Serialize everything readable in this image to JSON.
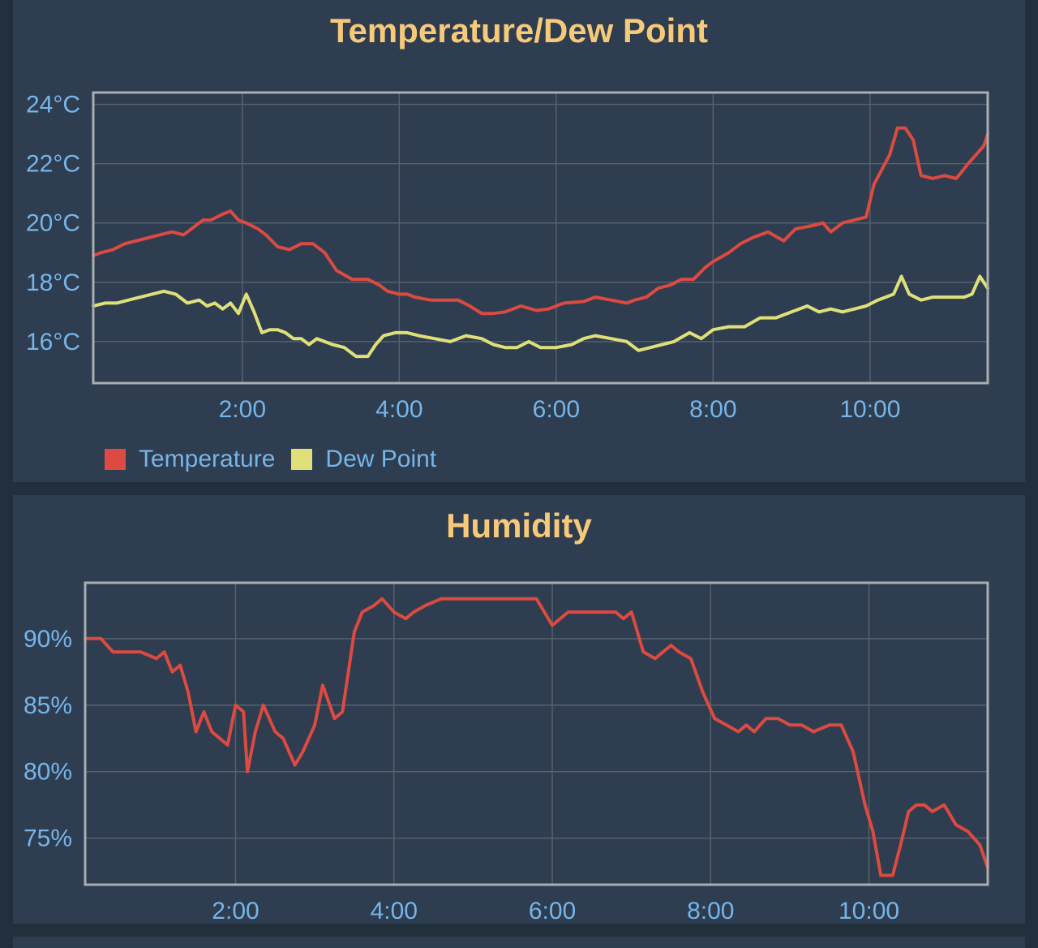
{
  "colors": {
    "background": "#22303d",
    "panel": "#2e3d4f",
    "title": "#f7c97a",
    "tick_text": "#76b5ea",
    "grid": "#56616d",
    "frame": "#a8adb2",
    "temperature": "#dc4a41",
    "dew_point": "#dfe07a",
    "humidity": "#dc4a41"
  },
  "chart_data": [
    {
      "type": "line",
      "title": "Temperature/Dew Point",
      "xlabel": "",
      "ylabel": "",
      "x_range_hours": [
        0.1,
        11.5
      ],
      "ylim": [
        14.6,
        24.4
      ],
      "yticks": [
        16,
        18,
        20,
        22,
        24
      ],
      "ytick_labels": [
        "16°C",
        "18°C",
        "20°C",
        "22°C",
        "24°C"
      ],
      "xticks": [
        2,
        4,
        6,
        8,
        10
      ],
      "xtick_labels": [
        "2:00",
        "4:00",
        "6:00",
        "8:00",
        "10:00"
      ],
      "grid": true,
      "legend": "bottom-left",
      "series": [
        {
          "name": "Temperature",
          "color": "#dc4a41",
          "x": [
            0.1,
            0.2,
            0.35,
            0.5,
            0.65,
            0.8,
            0.95,
            1.1,
            1.25,
            1.4,
            1.5,
            1.6,
            1.75,
            1.85,
            1.95,
            2.05,
            2.2,
            2.3,
            2.45,
            2.6,
            2.75,
            2.9,
            3.05,
            3.2,
            3.4,
            3.6,
            3.75,
            3.85,
            4.0,
            4.1,
            4.2,
            4.4,
            4.6,
            4.75,
            4.9,
            5.05,
            5.2,
            5.35,
            5.55,
            5.75,
            5.9,
            6.1,
            6.35,
            6.5,
            6.7,
            6.9,
            7.0,
            7.15,
            7.3,
            7.45,
            7.6,
            7.75,
            7.9,
            8.0,
            8.2,
            8.35,
            8.5,
            8.7,
            8.9,
            9.05,
            9.25,
            9.4,
            9.5,
            9.65,
            9.8,
            9.95,
            10.05,
            10.15,
            10.25,
            10.35,
            10.45,
            10.55,
            10.65,
            10.8,
            10.95,
            11.1,
            11.25,
            11.35,
            11.45,
            11.5
          ],
          "values": [
            18.9,
            19.0,
            19.1,
            19.3,
            19.4,
            19.5,
            19.6,
            19.7,
            19.6,
            19.9,
            20.1,
            20.1,
            20.3,
            20.4,
            20.1,
            20.0,
            19.8,
            19.6,
            19.2,
            19.1,
            19.3,
            19.3,
            19.0,
            18.4,
            18.1,
            18.1,
            17.9,
            17.7,
            17.6,
            17.6,
            17.5,
            17.4,
            17.4,
            17.4,
            17.2,
            16.95,
            16.95,
            17.0,
            17.2,
            17.05,
            17.1,
            17.3,
            17.35,
            17.5,
            17.4,
            17.3,
            17.4,
            17.5,
            17.8,
            17.9,
            18.1,
            18.1,
            18.5,
            18.7,
            19.0,
            19.3,
            19.5,
            19.7,
            19.4,
            19.8,
            19.9,
            20.0,
            19.7,
            20.0,
            20.1,
            20.2,
            21.3,
            21.8,
            22.3,
            23.2,
            23.2,
            22.8,
            21.6,
            21.5,
            21.6,
            21.5,
            22.0,
            22.3,
            22.6,
            23.0
          ]
        },
        {
          "name": "Dew Point",
          "color": "#dfe07a",
          "x": [
            0.1,
            0.25,
            0.4,
            0.55,
            0.7,
            0.85,
            1.0,
            1.15,
            1.3,
            1.45,
            1.55,
            1.65,
            1.75,
            1.85,
            1.95,
            2.05,
            2.15,
            2.25,
            2.35,
            2.45,
            2.55,
            2.65,
            2.75,
            2.85,
            2.95,
            3.05,
            3.15,
            3.3,
            3.45,
            3.6,
            3.7,
            3.8,
            3.95,
            4.1,
            4.25,
            4.45,
            4.65,
            4.85,
            5.05,
            5.2,
            5.35,
            5.5,
            5.65,
            5.8,
            6.0,
            6.2,
            6.35,
            6.5,
            6.7,
            6.9,
            7.05,
            7.2,
            7.35,
            7.5,
            7.7,
            7.85,
            8.0,
            8.2,
            8.4,
            8.6,
            8.8,
            9.0,
            9.2,
            9.35,
            9.5,
            9.65,
            9.8,
            9.95,
            10.1,
            10.2,
            10.3,
            10.4,
            10.5,
            10.65,
            10.8,
            11.0,
            11.2,
            11.3,
            11.4,
            11.5
          ],
          "values": [
            17.2,
            17.3,
            17.3,
            17.4,
            17.5,
            17.6,
            17.7,
            17.6,
            17.3,
            17.4,
            17.2,
            17.3,
            17.1,
            17.3,
            16.95,
            17.6,
            17.0,
            16.3,
            16.4,
            16.4,
            16.3,
            16.1,
            16.1,
            15.9,
            16.1,
            16.0,
            15.9,
            15.8,
            15.5,
            15.5,
            15.9,
            16.2,
            16.3,
            16.3,
            16.2,
            16.1,
            16.0,
            16.2,
            16.1,
            15.9,
            15.8,
            15.8,
            16.0,
            15.8,
            15.8,
            15.9,
            16.1,
            16.2,
            16.1,
            16.0,
            15.7,
            15.8,
            15.9,
            16.0,
            16.3,
            16.1,
            16.4,
            16.5,
            16.5,
            16.8,
            16.8,
            17.0,
            17.2,
            17.0,
            17.1,
            17.0,
            17.1,
            17.2,
            17.4,
            17.5,
            17.6,
            18.2,
            17.6,
            17.4,
            17.5,
            17.5,
            17.5,
            17.6,
            18.2,
            17.8
          ]
        }
      ]
    },
    {
      "type": "line",
      "title": "Humidity",
      "xlabel": "",
      "ylabel": "",
      "x_range_hours": [
        0.1,
        11.5
      ],
      "ylim": [
        71.5,
        94.2
      ],
      "yticks": [
        75,
        80,
        85,
        90
      ],
      "ytick_labels": [
        "75%",
        "80%",
        "85%",
        "90%"
      ],
      "xticks": [
        2,
        4,
        6,
        8,
        10
      ],
      "xtick_labels": [
        "2:00",
        "4:00",
        "6:00",
        "8:00",
        "10:00"
      ],
      "grid": true,
      "legend": "none",
      "series": [
        {
          "color": "#dc4a41",
          "x": [
            0.1,
            0.3,
            0.45,
            0.6,
            0.8,
            1.0,
            1.1,
            1.2,
            1.3,
            1.4,
            1.5,
            1.6,
            1.7,
            1.8,
            1.9,
            2.0,
            2.1,
            2.15,
            2.25,
            2.35,
            2.5,
            2.6,
            2.75,
            2.85,
            3.0,
            3.1,
            3.25,
            3.35,
            3.5,
            3.6,
            3.75,
            3.85,
            4.0,
            4.15,
            4.25,
            4.4,
            4.6,
            4.8,
            5.0,
            5.2,
            5.4,
            5.6,
            5.8,
            6.0,
            6.2,
            6.4,
            6.6,
            6.8,
            6.9,
            7.0,
            7.15,
            7.3,
            7.5,
            7.6,
            7.75,
            7.9,
            8.05,
            8.2,
            8.35,
            8.45,
            8.55,
            8.7,
            8.85,
            9.0,
            9.15,
            9.3,
            9.5,
            9.65,
            9.8,
            9.95,
            10.05,
            10.15,
            10.3,
            10.4,
            10.5,
            10.6,
            10.7,
            10.8,
            10.95,
            11.1,
            11.25,
            11.4,
            11.5
          ],
          "values": [
            90.0,
            90.0,
            89.0,
            89.0,
            89.0,
            88.5,
            89.0,
            87.5,
            88.0,
            86.0,
            83.0,
            84.5,
            83.0,
            82.5,
            82.0,
            85.0,
            84.5,
            80.0,
            83.0,
            85.0,
            83.0,
            82.5,
            80.5,
            81.5,
            83.5,
            86.5,
            84.0,
            84.5,
            90.5,
            92.0,
            92.5,
            93.0,
            92.0,
            91.5,
            92.0,
            92.5,
            93.0,
            93.0,
            93.0,
            93.0,
            93.0,
            93.0,
            93.0,
            91.0,
            92.0,
            92.0,
            92.0,
            92.0,
            91.5,
            92.0,
            89.0,
            88.5,
            89.5,
            89.0,
            88.5,
            86.0,
            84.0,
            83.5,
            83.0,
            83.5,
            83.0,
            84.0,
            84.0,
            83.5,
            83.5,
            83.0,
            83.5,
            83.5,
            81.5,
            77.5,
            75.5,
            72.2,
            72.2,
            74.5,
            77.0,
            77.5,
            77.5,
            77.0,
            77.5,
            76.0,
            75.5,
            74.5,
            72.8
          ]
        }
      ]
    }
  ]
}
